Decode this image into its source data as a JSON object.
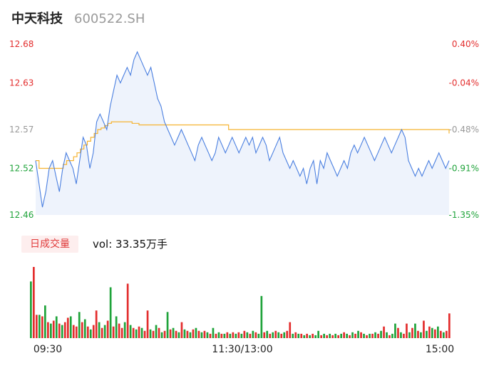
{
  "header": {
    "name": "中天科技",
    "code": "600522.SH"
  },
  "volume_panel": {
    "tag": "日成交量",
    "label": "vol: 33.35万手"
  },
  "colors": {
    "price_line": "#4a7fe0",
    "price_fill": "#eef3fc",
    "avg_line": "#f5b331",
    "up": "#e32d2d",
    "down": "#1fa33a",
    "neutral": "#999999"
  },
  "chart_data": {
    "type": "line",
    "y_left_ticks": [
      {
        "label": "12.68",
        "value": 12.68,
        "color": "#e32d2d"
      },
      {
        "label": "12.63",
        "value": 12.63,
        "color": "#e32d2d"
      },
      {
        "label": "12.57",
        "value": 12.57,
        "color": "#999999"
      },
      {
        "label": "12.52",
        "value": 12.52,
        "color": "#1fa33a"
      },
      {
        "label": "12.46",
        "value": 12.46,
        "color": "#1fa33a"
      }
    ],
    "y_right_ticks": [
      {
        "label": "0.40%",
        "color": "#e32d2d"
      },
      {
        "label": "-0.04%",
        "color": "#e32d2d"
      },
      {
        "label": "-0.48%",
        "color": "#999999"
      },
      {
        "label": "-0.91%",
        "color": "#1fa33a"
      },
      {
        "label": "-1.35%",
        "color": "#1fa33a"
      }
    ],
    "ylim": [
      12.46,
      12.68
    ],
    "x_labels": [
      "09:30",
      "11:30/13:00",
      "15:00"
    ],
    "price_series": [
      12.53,
      12.5,
      12.47,
      12.49,
      12.52,
      12.53,
      12.51,
      12.49,
      12.52,
      12.54,
      12.53,
      12.52,
      12.5,
      12.53,
      12.56,
      12.55,
      12.52,
      12.54,
      12.58,
      12.59,
      12.58,
      12.57,
      12.6,
      12.62,
      12.64,
      12.63,
      12.64,
      12.65,
      12.64,
      12.66,
      12.67,
      12.66,
      12.65,
      12.64,
      12.65,
      12.63,
      12.61,
      12.6,
      12.58,
      12.57,
      12.56,
      12.55,
      12.56,
      12.57,
      12.56,
      12.55,
      12.54,
      12.53,
      12.55,
      12.56,
      12.55,
      12.54,
      12.53,
      12.54,
      12.56,
      12.55,
      12.54,
      12.55,
      12.56,
      12.55,
      12.54,
      12.55,
      12.56,
      12.55,
      12.56,
      12.54,
      12.55,
      12.56,
      12.55,
      12.53,
      12.54,
      12.55,
      12.56,
      12.54,
      12.53,
      12.52,
      12.53,
      12.52,
      12.51,
      12.52,
      12.5,
      12.52,
      12.53,
      12.5,
      12.53,
      12.52,
      12.54,
      12.53,
      12.52,
      12.51,
      12.52,
      12.53,
      12.52,
      12.54,
      12.55,
      12.54,
      12.55,
      12.56,
      12.55,
      12.54,
      12.53,
      12.54,
      12.55,
      12.56,
      12.55,
      12.54,
      12.55,
      12.56,
      12.57,
      12.56,
      12.53,
      12.52,
      12.51,
      12.52,
      12.51,
      12.52,
      12.53,
      12.52,
      12.53,
      12.54,
      12.53,
      12.52,
      12.53
    ],
    "avg_series": [
      12.53,
      12.52,
      12.52,
      12.52,
      12.52,
      12.52,
      12.52,
      12.52,
      12.525,
      12.53,
      12.53,
      12.535,
      12.54,
      12.545,
      12.55,
      12.555,
      12.56,
      12.565,
      12.57,
      12.572,
      12.575,
      12.578,
      12.58,
      12.58,
      12.58,
      12.58,
      12.58,
      12.58,
      12.578,
      12.578,
      12.576,
      12.576,
      12.576,
      12.576,
      12.576,
      12.576,
      12.576,
      12.576,
      12.576,
      12.576,
      12.576,
      12.576,
      12.576,
      12.576,
      12.576,
      12.576,
      12.576,
      12.576,
      12.576,
      12.576,
      12.576,
      12.576,
      12.576,
      12.576,
      12.576,
      12.576,
      12.57,
      12.57,
      12.57,
      12.57,
      12.57,
      12.57,
      12.57,
      12.57,
      12.57,
      12.57,
      12.57,
      12.57,
      12.57,
      12.57,
      12.57,
      12.57,
      12.57,
      12.57,
      12.57,
      12.57,
      12.57,
      12.57,
      12.57,
      12.57,
      12.57,
      12.57,
      12.57,
      12.57,
      12.57,
      12.57,
      12.57,
      12.57,
      12.57,
      12.57,
      12.57,
      12.57,
      12.57,
      12.57,
      12.57,
      12.57,
      12.57,
      12.57,
      12.57,
      12.57,
      12.57,
      12.57,
      12.57,
      12.57,
      12.57,
      12.57,
      12.57,
      12.57,
      12.57,
      12.57,
      12.57,
      12.57,
      12.57,
      12.57,
      12.57,
      12.57,
      12.57,
      12.57,
      12.57,
      12.57,
      12.565
    ],
    "volume_series": [
      [
        78,
        "down"
      ],
      [
        98,
        "up"
      ],
      [
        32,
        "up"
      ],
      [
        32,
        "down"
      ],
      [
        30,
        "up"
      ],
      [
        45,
        "down"
      ],
      [
        22,
        "up"
      ],
      [
        20,
        "down"
      ],
      [
        24,
        "up"
      ],
      [
        30,
        "down"
      ],
      [
        20,
        "up"
      ],
      [
        18,
        "down"
      ],
      [
        22,
        "up"
      ],
      [
        28,
        "up"
      ],
      [
        30,
        "down"
      ],
      [
        18,
        "up"
      ],
      [
        16,
        "up"
      ],
      [
        36,
        "down"
      ],
      [
        22,
        "up"
      ],
      [
        26,
        "down"
      ],
      [
        16,
        "up"
      ],
      [
        12,
        "down"
      ],
      [
        18,
        "up"
      ],
      [
        38,
        "up"
      ],
      [
        22,
        "down"
      ],
      [
        14,
        "up"
      ],
      [
        18,
        "down"
      ],
      [
        24,
        "up"
      ],
      [
        70,
        "down"
      ],
      [
        16,
        "up"
      ],
      [
        30,
        "down"
      ],
      [
        20,
        "up"
      ],
      [
        14,
        "up"
      ],
      [
        22,
        "down"
      ],
      [
        75,
        "up"
      ],
      [
        18,
        "down"
      ],
      [
        14,
        "up"
      ],
      [
        12,
        "down"
      ],
      [
        16,
        "up"
      ],
      [
        14,
        "down"
      ],
      [
        10,
        "up"
      ],
      [
        38,
        "up"
      ],
      [
        12,
        "down"
      ],
      [
        10,
        "up"
      ],
      [
        18,
        "down"
      ],
      [
        14,
        "up"
      ],
      [
        8,
        "down"
      ],
      [
        10,
        "up"
      ],
      [
        36,
        "down"
      ],
      [
        12,
        "up"
      ],
      [
        14,
        "down"
      ],
      [
        10,
        "up"
      ],
      [
        8,
        "down"
      ],
      [
        22,
        "up"
      ],
      [
        12,
        "down"
      ],
      [
        10,
        "up"
      ],
      [
        8,
        "down"
      ],
      [
        12,
        "up"
      ],
      [
        14,
        "down"
      ],
      [
        10,
        "up"
      ],
      [
        8,
        "down"
      ],
      [
        10,
        "up"
      ],
      [
        8,
        "down"
      ],
      [
        6,
        "up"
      ],
      [
        14,
        "down"
      ],
      [
        6,
        "up"
      ],
      [
        8,
        "down"
      ],
      [
        6,
        "up"
      ],
      [
        6,
        "down"
      ],
      [
        8,
        "up"
      ],
      [
        6,
        "down"
      ],
      [
        8,
        "up"
      ],
      [
        6,
        "down"
      ],
      [
        8,
        "up"
      ],
      [
        6,
        "down"
      ],
      [
        10,
        "up"
      ],
      [
        8,
        "down"
      ],
      [
        6,
        "up"
      ],
      [
        10,
        "down"
      ],
      [
        8,
        "up"
      ],
      [
        6,
        "down"
      ],
      [
        58,
        "down"
      ],
      [
        8,
        "up"
      ],
      [
        10,
        "down"
      ],
      [
        6,
        "up"
      ],
      [
        8,
        "down"
      ],
      [
        10,
        "up"
      ],
      [
        8,
        "down"
      ],
      [
        6,
        "up"
      ],
      [
        8,
        "down"
      ],
      [
        10,
        "up"
      ],
      [
        22,
        "up"
      ],
      [
        6,
        "down"
      ],
      [
        8,
        "up"
      ],
      [
        6,
        "down"
      ],
      [
        6,
        "up"
      ],
      [
        4,
        "down"
      ],
      [
        6,
        "up"
      ],
      [
        4,
        "down"
      ],
      [
        6,
        "up"
      ],
      [
        4,
        "down"
      ],
      [
        10,
        "down"
      ],
      [
        4,
        "up"
      ],
      [
        6,
        "down"
      ],
      [
        4,
        "up"
      ],
      [
        6,
        "down"
      ],
      [
        4,
        "up"
      ],
      [
        6,
        "down"
      ],
      [
        4,
        "up"
      ],
      [
        6,
        "down"
      ],
      [
        8,
        "up"
      ],
      [
        6,
        "down"
      ],
      [
        4,
        "up"
      ],
      [
        8,
        "down"
      ],
      [
        6,
        "up"
      ],
      [
        10,
        "down"
      ],
      [
        8,
        "up"
      ],
      [
        6,
        "down"
      ],
      [
        4,
        "up"
      ],
      [
        6,
        "down"
      ],
      [
        6,
        "up"
      ],
      [
        8,
        "down"
      ],
      [
        6,
        "up"
      ],
      [
        10,
        "down"
      ],
      [
        16,
        "up"
      ],
      [
        8,
        "down"
      ],
      [
        4,
        "up"
      ],
      [
        6,
        "down"
      ],
      [
        20,
        "down"
      ],
      [
        14,
        "up"
      ],
      [
        8,
        "down"
      ],
      [
        6,
        "up"
      ],
      [
        20,
        "up"
      ],
      [
        8,
        "down"
      ],
      [
        14,
        "up"
      ],
      [
        20,
        "down"
      ],
      [
        10,
        "up"
      ],
      [
        8,
        "down"
      ],
      [
        24,
        "up"
      ],
      [
        10,
        "down"
      ],
      [
        16,
        "up"
      ],
      [
        14,
        "down"
      ],
      [
        12,
        "up"
      ],
      [
        16,
        "down"
      ],
      [
        10,
        "up"
      ],
      [
        8,
        "down"
      ],
      [
        10,
        "up"
      ],
      [
        34,
        "up"
      ]
    ]
  }
}
